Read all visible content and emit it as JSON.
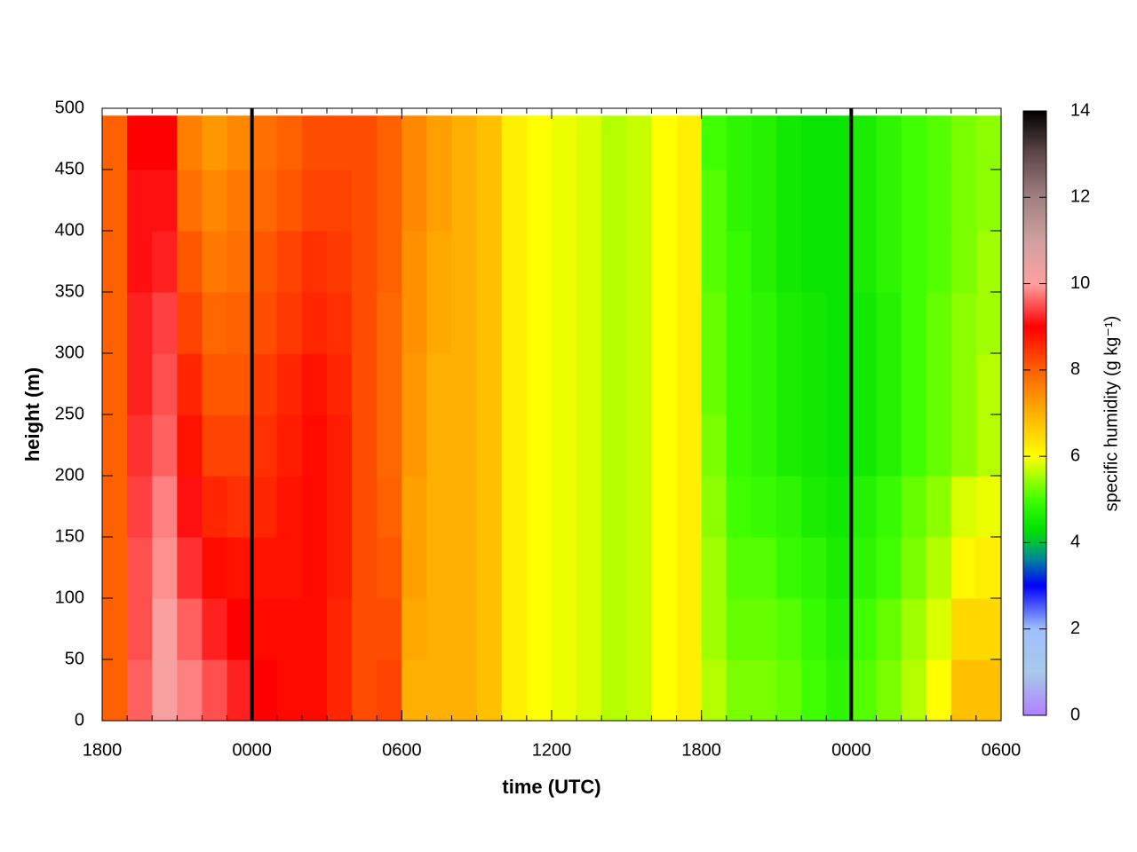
{
  "chart_data": {
    "type": "heatmap",
    "xlabel": "time (UTC)",
    "ylabel": "height (m)",
    "colorbar_label": "specific humidity (g kg⁻¹)",
    "x": [
      0,
      1,
      2,
      3,
      4,
      5,
      6,
      7,
      8,
      9,
      10,
      11,
      12,
      13,
      14,
      15,
      16,
      17,
      18,
      19,
      20,
      21,
      22,
      23,
      24,
      25,
      26,
      27,
      28,
      29,
      30,
      31,
      32,
      33,
      34,
      35,
      36
    ],
    "y": [
      0,
      50,
      100,
      150,
      200,
      250,
      300,
      350,
      400,
      450,
      494
    ],
    "values": [
      [
        8.0,
        9.6,
        10.2,
        9.8,
        9.5,
        9.2,
        9.0,
        8.9,
        8.9,
        8.6,
        8.2,
        8.3,
        7.0,
        7.0,
        7.0,
        6.8,
        6.2,
        6.0,
        5.9,
        5.8,
        5.6,
        5.7,
        6.0,
        6.2,
        5.6,
        5.3,
        5.3,
        5.2,
        5.0,
        4.8,
        5.1,
        5.3,
        5.6,
        6.0,
        6.8,
        6.8
      ],
      [
        8.0,
        9.5,
        10.1,
        9.6,
        9.2,
        9.0,
        8.9,
        8.9,
        8.9,
        8.6,
        8.2,
        8.2,
        7.1,
        7.0,
        7.0,
        6.8,
        6.2,
        6.0,
        5.9,
        5.8,
        5.6,
        5.7,
        6.0,
        6.2,
        5.5,
        5.2,
        5.2,
        5.1,
        4.9,
        4.7,
        5.0,
        5.2,
        5.5,
        5.8,
        6.5,
        6.5
      ],
      [
        8.0,
        9.5,
        9.9,
        9.3,
        8.9,
        8.8,
        8.8,
        8.8,
        8.9,
        8.7,
        8.2,
        8.1,
        7.2,
        7.0,
        7.0,
        6.8,
        6.2,
        6.0,
        5.9,
        5.8,
        5.6,
        5.7,
        6.0,
        6.2,
        5.5,
        5.1,
        5.1,
        4.9,
        4.8,
        4.6,
        4.8,
        5.0,
        5.3,
        5.6,
        6.1,
        6.2
      ],
      [
        8.0,
        9.4,
        9.8,
        9.1,
        8.6,
        8.5,
        8.6,
        8.8,
        8.9,
        8.7,
        8.2,
        8.0,
        7.2,
        7.0,
        7.0,
        6.8,
        6.2,
        6.0,
        5.9,
        5.8,
        5.6,
        5.7,
        6.0,
        6.2,
        5.4,
        5.0,
        4.9,
        4.8,
        4.6,
        4.5,
        4.7,
        4.9,
        5.2,
        5.4,
        5.8,
        5.9
      ],
      [
        8.0,
        9.3,
        9.6,
        8.8,
        8.3,
        8.3,
        8.5,
        8.7,
        8.9,
        8.7,
        8.2,
        7.9,
        7.3,
        7.0,
        7.0,
        6.8,
        6.2,
        6.0,
        5.9,
        5.8,
        5.6,
        5.7,
        6.0,
        6.2,
        5.3,
        4.9,
        4.8,
        4.6,
        4.5,
        4.4,
        4.5,
        4.7,
        5.0,
        5.2,
        5.4,
        5.6
      ],
      [
        8.0,
        9.2,
        9.5,
        8.6,
        8.1,
        8.1,
        8.4,
        8.6,
        8.8,
        8.6,
        8.2,
        7.9,
        7.3,
        7.0,
        7.0,
        6.8,
        6.2,
        6.0,
        5.9,
        5.8,
        5.6,
        5.7,
        6.0,
        6.2,
        5.2,
        4.9,
        4.8,
        4.6,
        4.5,
        4.4,
        4.5,
        4.7,
        5.0,
        5.2,
        5.4,
        5.6
      ],
      [
        8.0,
        9.2,
        9.4,
        8.3,
        7.9,
        8.0,
        8.2,
        8.4,
        8.6,
        8.5,
        8.2,
        7.9,
        7.4,
        7.1,
        7.0,
        6.8,
        6.2,
        6.0,
        5.9,
        5.8,
        5.6,
        5.7,
        6.0,
        6.2,
        5.2,
        4.9,
        4.8,
        4.6,
        4.5,
        4.4,
        4.5,
        4.7,
        5.0,
        5.2,
        5.4,
        5.5
      ],
      [
        8.0,
        9.1,
        9.2,
        8.1,
        7.7,
        7.8,
        8.1,
        8.3,
        8.5,
        8.4,
        8.2,
        8.0,
        7.4,
        7.1,
        7.0,
        6.8,
        6.2,
        6.0,
        5.9,
        5.8,
        5.6,
        5.7,
        6.0,
        6.2,
        5.1,
        4.9,
        4.7,
        4.5,
        4.4,
        4.4,
        4.6,
        4.8,
        5.0,
        5.1,
        5.3,
        5.5
      ],
      [
        8.0,
        9.1,
        9.1,
        7.8,
        7.5,
        7.7,
        7.9,
        8.1,
        8.3,
        8.3,
        8.2,
        8.0,
        7.5,
        7.2,
        7.0,
        6.8,
        6.2,
        6.0,
        5.9,
        5.8,
        5.6,
        5.7,
        6.0,
        6.2,
        5.1,
        4.8,
        4.7,
        4.5,
        4.4,
        4.4,
        4.6,
        4.8,
        5.0,
        5.1,
        5.3,
        5.4
      ],
      [
        8.0,
        9.0,
        9.0,
        7.6,
        7.3,
        7.5,
        7.8,
        8.0,
        8.2,
        8.2,
        8.2,
        8.0,
        7.5,
        7.2,
        7.0,
        6.8,
        6.2,
        6.0,
        5.9,
        5.8,
        5.6,
        5.7,
        6.0,
        6.2,
        5.0,
        4.8,
        4.7,
        4.5,
        4.4,
        4.4,
        4.6,
        4.8,
        5.0,
        5.1,
        5.3,
        5.4
      ]
    ],
    "xlim": [
      0,
      36
    ],
    "xticks": [
      {
        "value": 0,
        "label": "1800"
      },
      {
        "value": 6,
        "label": "0000"
      },
      {
        "value": 12,
        "label": "0600"
      },
      {
        "value": 18,
        "label": "1200"
      },
      {
        "value": 24,
        "label": "1800"
      },
      {
        "value": 30,
        "label": "0000"
      },
      {
        "value": 36,
        "label": "0600"
      }
    ],
    "ylim": [
      0,
      500
    ],
    "yticks": [
      0,
      50,
      100,
      150,
      200,
      250,
      300,
      350,
      400,
      450,
      500
    ],
    "vlines": [
      6,
      30
    ],
    "clim": [
      0,
      14
    ],
    "cticks": [
      0,
      2,
      4,
      6,
      8,
      10,
      12,
      14
    ],
    "colormap": [
      [
        0,
        "#b080ff"
      ],
      [
        1,
        "#a8c8e8"
      ],
      [
        2,
        "#a0c0ff"
      ],
      [
        3,
        "#0000ff"
      ],
      [
        3.6,
        "#0080a0"
      ],
      [
        4,
        "#00c040"
      ],
      [
        4.3,
        "#00e000"
      ],
      [
        5,
        "#40ff00"
      ],
      [
        6,
        "#ffff00"
      ],
      [
        7,
        "#ffb000"
      ],
      [
        8,
        "#ff6000"
      ],
      [
        9,
        "#ff0000"
      ],
      [
        10,
        "#ffa0a0"
      ],
      [
        11,
        "#d0a0a0"
      ],
      [
        12,
        "#a08080"
      ],
      [
        13,
        "#604848"
      ],
      [
        14,
        "#000000"
      ]
    ]
  }
}
